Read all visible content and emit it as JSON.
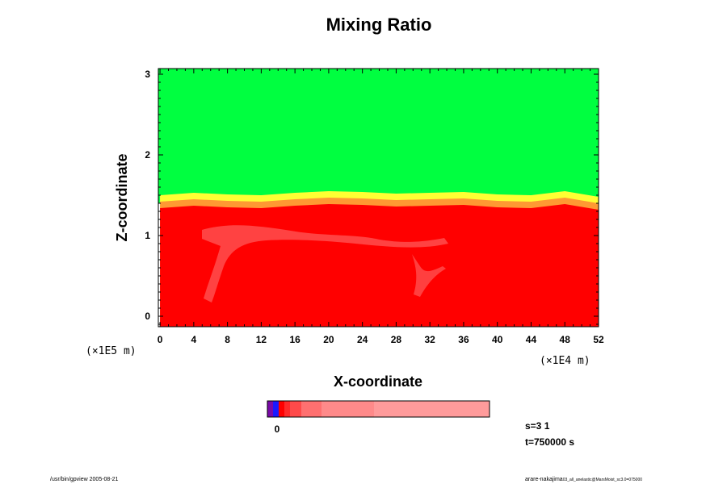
{
  "chart_data": {
    "type": "heatmap",
    "title": "Mixing Ratio",
    "xlabel": "X-coordinate",
    "ylabel": "Z-coordinate",
    "x_scale_label": "(×1E4 m)",
    "y_scale_label": "(×1E5 m)",
    "x_ticks": [
      "0",
      "4",
      "8",
      "12",
      "16",
      "20",
      "24",
      "28",
      "32",
      "36",
      "40",
      "44",
      "48",
      "52"
    ],
    "y_ticks": [
      "0",
      "1",
      "2",
      "3"
    ],
    "xlim": [
      -0.2,
      52.0
    ],
    "ylim": [
      -0.13,
      3.07
    ],
    "regions": [
      {
        "name": "upper layer",
        "z_range": [
          1.45,
          3.07
        ],
        "color": "#00ff40"
      },
      {
        "name": "mixing interface",
        "z_range": [
          1.25,
          1.55
        ],
        "colors": [
          "#ffff33",
          "#ffcc00",
          "#ff9933",
          "#ff6633"
        ]
      },
      {
        "name": "lower layer",
        "z_range": [
          -0.13,
          1.3
        ],
        "color": "#ff0000"
      }
    ],
    "interface_z": [
      1.42,
      1.45,
      1.43,
      1.42,
      1.45,
      1.47,
      1.46,
      1.44,
      1.45,
      1.46,
      1.43,
      1.42,
      1.47,
      1.4
    ],
    "interface_x": [
      0,
      4,
      8,
      12,
      16,
      20,
      24,
      28,
      32,
      36,
      40,
      44,
      48,
      52
    ],
    "colorbar": {
      "label": "0",
      "colors": [
        "#7a0aa8",
        "#1a1aff",
        "#ff0000",
        "#ff2a2a",
        "#ff4a4a",
        "#ff7070",
        "#ff8a8a",
        "#ff9b9b"
      ]
    }
  },
  "info": {
    "step": "s=3 1",
    "time": "t=750000 s",
    "footer_left": "/usr/bin/gpview 2005-08-21",
    "footer_right_main": "arare-nakajima",
    "footer_right_sub": "03_all_anelastic@MarsMoist_sc3.0=075000"
  }
}
